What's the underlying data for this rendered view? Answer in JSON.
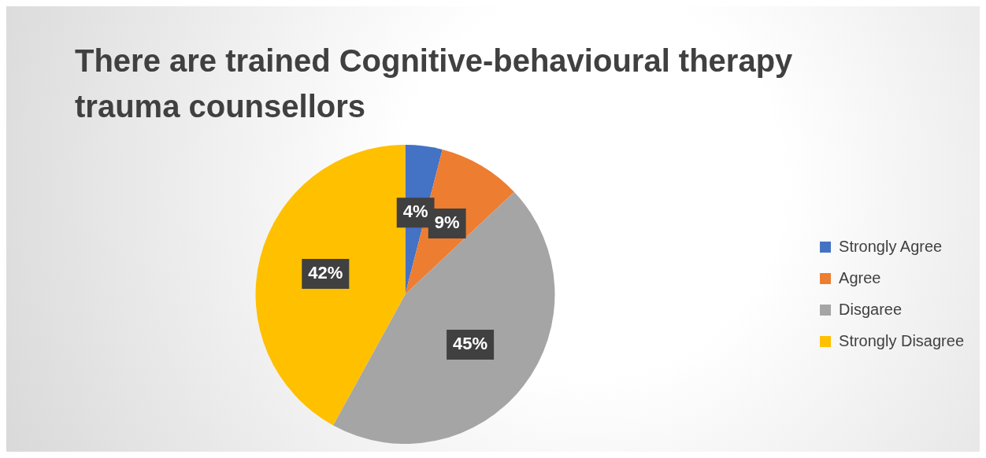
{
  "chart_data": {
    "type": "pie",
    "title": "There are trained Cognitive-behavioural therapy trauma counsellors",
    "categories": [
      "Strongly Agree",
      "Agree",
      "Disgaree",
      "Strongly Disagree"
    ],
    "values": [
      4,
      9,
      45,
      42
    ],
    "colors": [
      "#4472c4",
      "#ed7d31",
      "#a5a5a5",
      "#ffc000"
    ],
    "value_labels": [
      "4%",
      "9%",
      "45%",
      "42%"
    ],
    "legend": "right"
  }
}
